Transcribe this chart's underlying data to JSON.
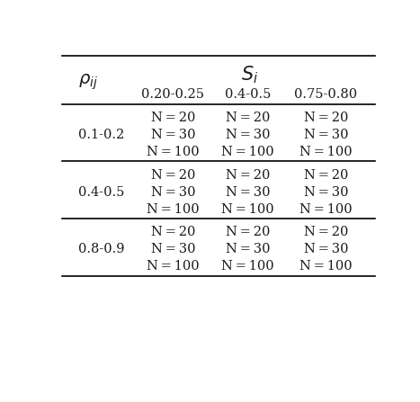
{
  "col_headers": [
    "0.20-0.25",
    "0.4-0.5",
    "0.75-0.80"
  ],
  "row_groups": [
    "0.1-0.2",
    "0.4-0.5",
    "0.8-0.9"
  ],
  "cell_values": [
    "N = 20",
    "N = 30",
    "N = 100"
  ],
  "bg_color": "#ffffff",
  "text_color": "#1a1a1a",
  "line_color": "#000000",
  "font_size": 10.5,
  "header_font_size": 12
}
